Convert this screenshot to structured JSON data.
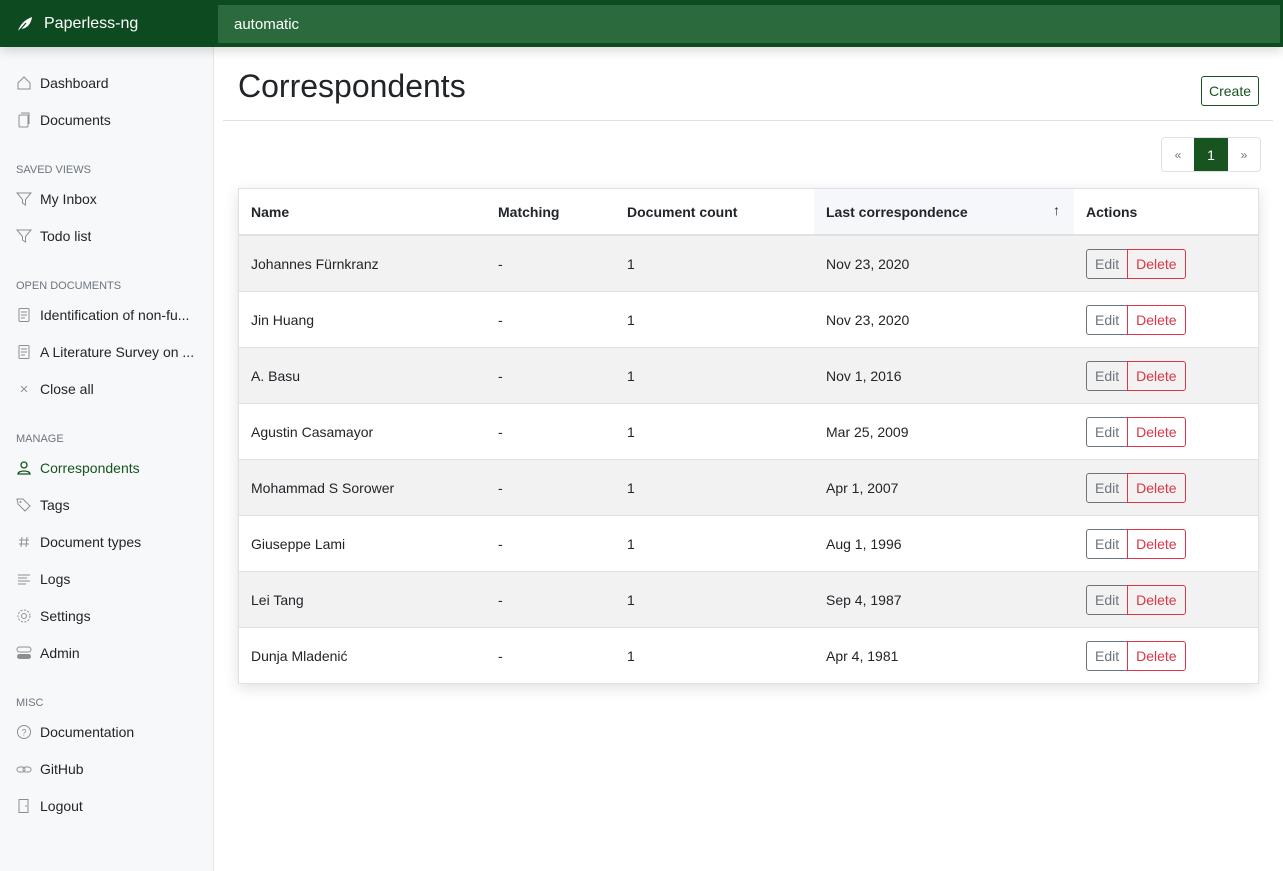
{
  "app": {
    "name": "Paperless-ng",
    "search_value": "automatic"
  },
  "sidebar": {
    "main": [
      {
        "label": "Dashboard",
        "icon": "house-icon"
      },
      {
        "label": "Documents",
        "icon": "files-icon"
      }
    ],
    "saved_views_title": "SAVED VIEWS",
    "saved_views": [
      {
        "label": "My Inbox",
        "icon": "funnel-icon"
      },
      {
        "label": "Todo list",
        "icon": "funnel-icon"
      }
    ],
    "open_docs_title": "OPEN DOCUMENTS",
    "open_docs": [
      {
        "label": "Identification of non-fu...",
        "icon": "file-text-icon"
      },
      {
        "label": "A Literature Survey on ...",
        "icon": "file-text-icon"
      },
      {
        "label": "Close all",
        "icon": "x-icon"
      }
    ],
    "manage_title": "MANAGE",
    "manage": [
      {
        "label": "Correspondents",
        "icon": "person-icon"
      },
      {
        "label": "Tags",
        "icon": "tags-icon"
      },
      {
        "label": "Document types",
        "icon": "hash-icon"
      },
      {
        "label": "Logs",
        "icon": "text-left-icon"
      },
      {
        "label": "Settings",
        "icon": "gear-icon"
      },
      {
        "label": "Admin",
        "icon": "toggles-icon"
      }
    ],
    "misc_title": "MISC",
    "misc": [
      {
        "label": "Documentation",
        "icon": "question-circle-icon"
      },
      {
        "label": "GitHub",
        "icon": "link-icon"
      },
      {
        "label": "Logout",
        "icon": "door-icon"
      }
    ]
  },
  "page": {
    "title": "Correspondents",
    "create_label": "Create",
    "pagination": {
      "prev": "«",
      "current": "1",
      "next": "»"
    }
  },
  "table": {
    "headers": [
      "Name",
      "Matching",
      "Document count",
      "Last correspondence",
      "Actions"
    ],
    "sort_indicator": "↑",
    "edit_label": "Edit",
    "delete_label": "Delete",
    "rows": [
      [
        "Johannes Fürnkranz",
        "-",
        "1",
        "Nov 23, 2020"
      ],
      [
        "Jin Huang",
        "-",
        "1",
        "Nov 23, 2020"
      ],
      [
        "A. Basu",
        "-",
        "1",
        "Nov 1, 2016"
      ],
      [
        "Agustin Casamayor",
        "-",
        "1",
        "Mar 25, 2009"
      ],
      [
        "Mohammad S Sorower",
        "-",
        "1",
        "Apr 1, 2007"
      ],
      [
        "Giuseppe Lami",
        "-",
        "1",
        "Aug 1, 1996"
      ],
      [
        "Lei Tang",
        "-",
        "1",
        "Sep 4, 1987"
      ],
      [
        "Dunja Mladenić",
        "-",
        "1",
        "Apr 4, 1981"
      ]
    ]
  },
  "colors": {
    "brand": "#0d4a1f",
    "accent": "#17541f",
    "danger": "#dc3545"
  }
}
